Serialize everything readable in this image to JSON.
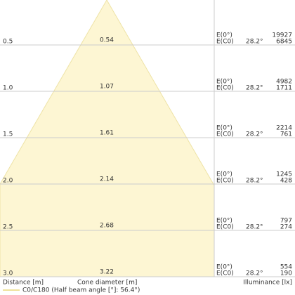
{
  "rows": [
    {
      "distance": "0.5",
      "diameter": "0.54",
      "e0_label": "E(0°)",
      "ec0_label": "E(C0)",
      "angle": "28.2°",
      "e0": "19927",
      "ec0": "6845"
    },
    {
      "distance": "1.0",
      "diameter": "1.07",
      "e0_label": "E(0°)",
      "ec0_label": "E(C0)",
      "angle": "28.2°",
      "e0": "4982",
      "ec0": "1711"
    },
    {
      "distance": "1.5",
      "diameter": "1.61",
      "e0_label": "E(0°)",
      "ec0_label": "E(C0)",
      "angle": "28.2°",
      "e0": "2214",
      "ec0": "761"
    },
    {
      "distance": "2.0",
      "diameter": "2.14",
      "e0_label": "E(0°)",
      "ec0_label": "E(C0)",
      "angle": "28.2°",
      "e0": "1245",
      "ec0": "428"
    },
    {
      "distance": "2.5",
      "diameter": "2.68",
      "e0_label": "E(0°)",
      "ec0_label": "E(C0)",
      "angle": "28.2°",
      "e0": "797",
      "ec0": "274"
    },
    {
      "distance": "3.0",
      "diameter": "3.22",
      "e0_label": "E(0°)",
      "ec0_label": "E(C0)",
      "angle": "28.2°",
      "e0": "554",
      "ec0": "190"
    }
  ],
  "footer": {
    "distance": "Distance [m]",
    "diameter": "Cone diameter [m]",
    "illuminance": "Illuminance [lx]"
  },
  "legend": {
    "label": "C0/C180 (Half beam angle [°]: 56.4°)"
  }
}
